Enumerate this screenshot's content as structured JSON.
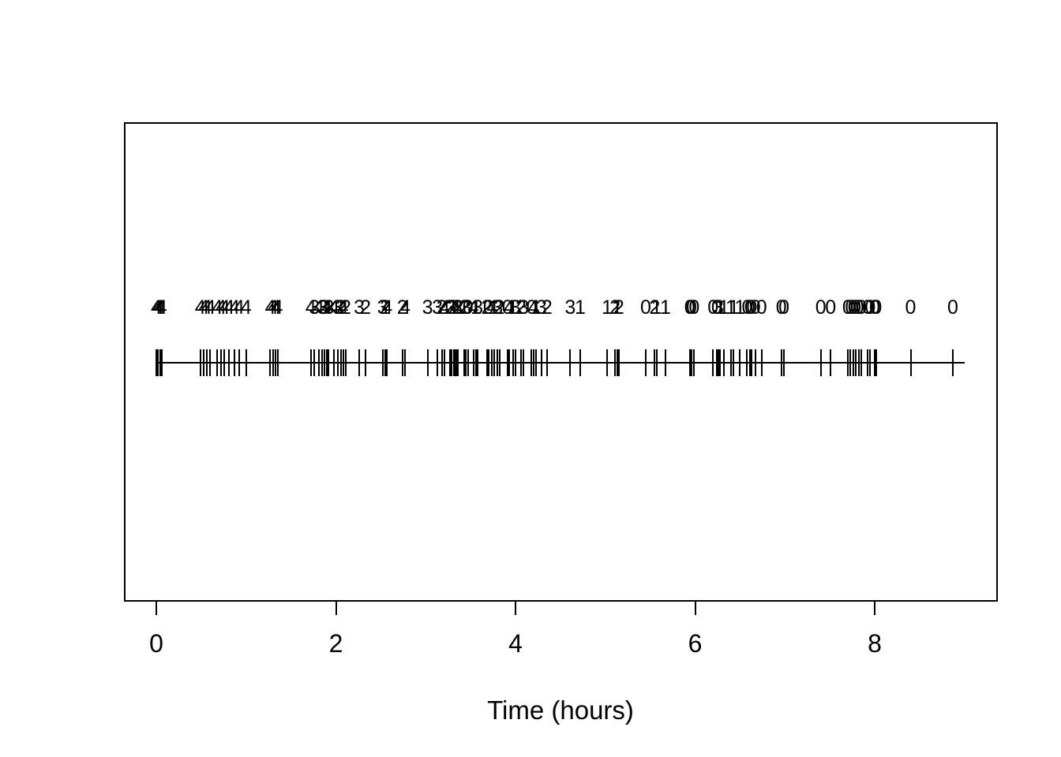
{
  "figure": {
    "background_color": "#ffffff",
    "stroke_color": "#000000",
    "xlabel": "Time (hours)"
  },
  "chart_data": {
    "type": "scatter",
    "subtype": "event-timeline-rug",
    "title": "",
    "xlabel": "Time (hours)",
    "ylabel": "",
    "xlim": [
      0,
      9.2
    ],
    "x_ticks": [
      0,
      2,
      4,
      6,
      8
    ],
    "grid": "off",
    "legend": "none",
    "timeline_range": [
      0.0,
      9.0
    ],
    "marker": "vertical-tick",
    "label_meaning": "count shown above each event tick",
    "events": [
      [
        0.0,
        4
      ],
      [
        0.02,
        4
      ],
      [
        0.04,
        4
      ],
      [
        0.06,
        4
      ],
      [
        0.49,
        4
      ],
      [
        0.53,
        4
      ],
      [
        0.56,
        4
      ],
      [
        0.6,
        4
      ],
      [
        0.68,
        4
      ],
      [
        0.72,
        4
      ],
      [
        0.76,
        4
      ],
      [
        0.81,
        4
      ],
      [
        0.87,
        4
      ],
      [
        0.92,
        4
      ],
      [
        1.0,
        4
      ],
      [
        1.27,
        4
      ],
      [
        1.3,
        4
      ],
      [
        1.33,
        4
      ],
      [
        1.35,
        4
      ],
      [
        1.72,
        4
      ],
      [
        1.76,
        3
      ],
      [
        1.81,
        4
      ],
      [
        1.85,
        3
      ],
      [
        1.87,
        3
      ],
      [
        1.9,
        4
      ],
      [
        1.92,
        3
      ],
      [
        1.98,
        4
      ],
      [
        2.02,
        3
      ],
      [
        2.06,
        2
      ],
      [
        2.08,
        4
      ],
      [
        2.11,
        2
      ],
      [
        2.26,
        3
      ],
      [
        2.33,
        2
      ],
      [
        2.52,
        3
      ],
      [
        2.55,
        2
      ],
      [
        2.57,
        4
      ],
      [
        2.74,
        2
      ],
      [
        2.77,
        4
      ],
      [
        3.02,
        3
      ],
      [
        3.13,
        3
      ],
      [
        3.18,
        2
      ],
      [
        3.21,
        4
      ],
      [
        3.27,
        2
      ],
      [
        3.29,
        3
      ],
      [
        3.31,
        2
      ],
      [
        3.33,
        4
      ],
      [
        3.35,
        3
      ],
      [
        3.36,
        2
      ],
      [
        3.43,
        2
      ],
      [
        3.45,
        3
      ],
      [
        3.47,
        0
      ],
      [
        3.53,
        4
      ],
      [
        3.56,
        1
      ],
      [
        3.58,
        3
      ],
      [
        3.68,
        2
      ],
      [
        3.7,
        0
      ],
      [
        3.74,
        4
      ],
      [
        3.76,
        1
      ],
      [
        3.8,
        3
      ],
      [
        3.82,
        2
      ],
      [
        3.91,
        0
      ],
      [
        3.93,
        4
      ],
      [
        3.97,
        1
      ],
      [
        4.0,
        3
      ],
      [
        4.06,
        2
      ],
      [
        4.09,
        3
      ],
      [
        4.18,
        0
      ],
      [
        4.2,
        4
      ],
      [
        4.23,
        1
      ],
      [
        4.29,
        3
      ],
      [
        4.35,
        2
      ],
      [
        4.61,
        3
      ],
      [
        4.72,
        1
      ],
      [
        5.02,
        1
      ],
      [
        5.11,
        2
      ],
      [
        5.13,
        1
      ],
      [
        5.15,
        2
      ],
      [
        5.45,
        0
      ],
      [
        5.55,
        2
      ],
      [
        5.57,
        1
      ],
      [
        5.67,
        1
      ],
      [
        5.94,
        0
      ],
      [
        5.96,
        0
      ],
      [
        5.99,
        0
      ],
      [
        6.2,
        0
      ],
      [
        6.24,
        0
      ],
      [
        6.26,
        3
      ],
      [
        6.28,
        1
      ],
      [
        6.32,
        1
      ],
      [
        6.4,
        1
      ],
      [
        6.43,
        1
      ],
      [
        6.5,
        1
      ],
      [
        6.58,
        0
      ],
      [
        6.61,
        0
      ],
      [
        6.63,
        0
      ],
      [
        6.67,
        0
      ],
      [
        6.74,
        0
      ],
      [
        6.96,
        0
      ],
      [
        6.99,
        0
      ],
      [
        7.4,
        0
      ],
      [
        7.51,
        0
      ],
      [
        7.7,
        0
      ],
      [
        7.73,
        0
      ],
      [
        7.76,
        0
      ],
      [
        7.79,
        0
      ],
      [
        7.82,
        0
      ],
      [
        7.85,
        0
      ],
      [
        7.92,
        0
      ],
      [
        7.95,
        0
      ],
      [
        8.0,
        0
      ],
      [
        8.02,
        0
      ],
      [
        8.4,
        0
      ],
      [
        8.87,
        0
      ]
    ]
  }
}
